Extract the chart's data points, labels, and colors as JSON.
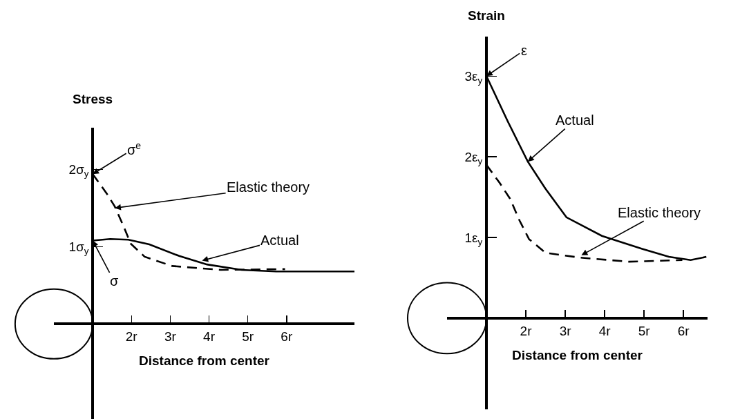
{
  "chart_data": [
    {
      "type": "line",
      "title": "Stress",
      "xlabel": "Distance from center",
      "xlim": [
        0,
        7.75
      ],
      "ylim": [
        -1.23,
        2.54
      ],
      "xticks": [
        {
          "value": 1,
          "label": null
        },
        {
          "value": 2,
          "label": "2r"
        },
        {
          "value": 3,
          "label": "3r"
        },
        {
          "value": 4,
          "label": "4r"
        },
        {
          "value": 5,
          "label": "5r"
        },
        {
          "value": 6,
          "label": "6r"
        }
      ],
      "yticks": [
        {
          "value": 0,
          "label": null
        },
        {
          "value": 1,
          "label": "1σ$_{y}$"
        },
        {
          "value": 2,
          "label": "2σ$_{y}$"
        }
      ],
      "series": [
        {
          "color": "#000000",
          "line_style": "dashed",
          "x": [
            1,
            1.36,
            1.57,
            1.8,
            1.98,
            2.34,
            3.05,
            4.3,
            5.96
          ],
          "values": [
            1.94,
            1.69,
            1.52,
            1.26,
            1.04,
            0.87,
            0.75,
            0.7,
            0.71
          ]
        },
        {
          "color": "#000000",
          "line_style": "solid",
          "x": [
            1,
            1.45,
            1.92,
            2.46,
            3.23,
            3.95,
            4.84,
            5.73,
            7.75
          ],
          "values": [
            1.08,
            1.1,
            1.09,
            1.03,
            0.88,
            0.77,
            0.7,
            0.68,
            0.68
          ]
        }
      ],
      "annotations": [
        {
          "text": "σ$^{e}$",
          "x": 1,
          "y": 1.94
        },
        {
          "text": "σ",
          "x": 1,
          "y": 1.08
        },
        {
          "text": "Elastic theory",
          "x": 1.57,
          "y": 1.5
        },
        {
          "text": "Actual",
          "x": 3.82,
          "y": 0.82
        }
      ]
    },
    {
      "type": "line",
      "title": "Strain",
      "xlabel": "Distance from center",
      "xlim": [
        0,
        6.61
      ],
      "ylim": [
        -1.13,
        3.49
      ],
      "xticks": [
        {
          "value": 1,
          "label": null
        },
        {
          "value": 2,
          "label": "2r"
        },
        {
          "value": 3,
          "label": "3r"
        },
        {
          "value": 4,
          "label": "4r"
        },
        {
          "value": 5,
          "label": "5r"
        },
        {
          "value": 6,
          "label": "6r"
        }
      ],
      "yticks": [
        {
          "value": 0,
          "label": null
        },
        {
          "value": 1,
          "label": "1ε$_{y}$"
        },
        {
          "value": 2,
          "label": "2ε$_{y}$"
        },
        {
          "value": 3,
          "label": "3ε$_{y}$"
        }
      ],
      "series": [
        {
          "color": "#000000",
          "line_style": "solid",
          "x": [
            1,
            1.54,
            2.05,
            2.49,
            3.03,
            3.93,
            4.95,
            5.63,
            6.18,
            6.58
          ],
          "values": [
            3,
            2.44,
            1.94,
            1.61,
            1.25,
            1.02,
            0.86,
            0.76,
            0.72,
            0.76
          ]
        },
        {
          "color": "#000000",
          "line_style": "dashed",
          "x": [
            1,
            1.33,
            1.6,
            1.84,
            2.08,
            2.5,
            3.38,
            4.61,
            5.97
          ],
          "values": [
            1.9,
            1.68,
            1.48,
            1.21,
            0.98,
            0.81,
            0.75,
            0.7,
            0.72
          ]
        }
      ],
      "annotations": [
        {
          "text": "ε",
          "x": 1,
          "y": 3
        },
        {
          "text": "Actual",
          "x": 2.05,
          "y": 1.94
        },
        {
          "text": "Elastic theory",
          "x": 3.41,
          "y": 0.78
        }
      ]
    }
  ]
}
